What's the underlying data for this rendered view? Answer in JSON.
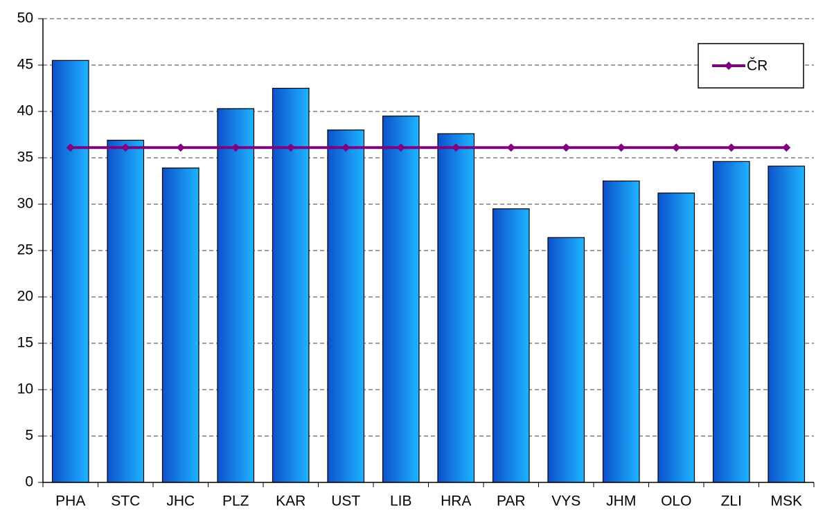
{
  "chart_data": {
    "type": "bar",
    "categories": [
      "PHA",
      "STC",
      "JHC",
      "PLZ",
      "KAR",
      "UST",
      "LIB",
      "HRA",
      "PAR",
      "VYS",
      "JHM",
      "OLO",
      "ZLI",
      "MSK"
    ],
    "series": [
      {
        "type": "bar",
        "color": "#1eb4ff",
        "values": [
          45.5,
          36.9,
          33.9,
          40.3,
          42.5,
          38.0,
          39.5,
          37.6,
          29.5,
          26.4,
          32.5,
          31.2,
          34.6,
          34.1
        ]
      },
      {
        "type": "line",
        "name": "ČR",
        "color": "#800080",
        "values": [
          36.1,
          36.1,
          36.1,
          36.1,
          36.1,
          36.1,
          36.1,
          36.1,
          36.1,
          36.1,
          36.1,
          36.1,
          36.1,
          36.1
        ]
      }
    ],
    "ylim": [
      0,
      50
    ],
    "yticks": [
      0,
      5,
      10,
      15,
      20,
      25,
      30,
      35,
      40,
      45,
      50
    ],
    "grid": true,
    "legend": "upper-right"
  }
}
